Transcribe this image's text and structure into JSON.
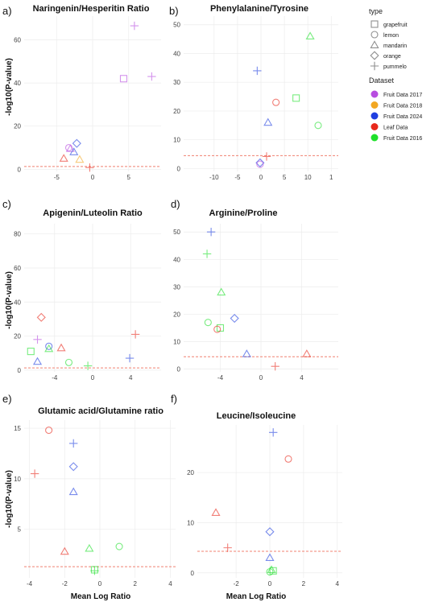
{
  "figure": {
    "ylabel": "-log10(P-value)",
    "xlabel": "Mean Log Ratio"
  },
  "legend": {
    "type_title": "type",
    "types": [
      {
        "name": "grapefruit",
        "shape": "square"
      },
      {
        "name": "lemon",
        "shape": "circle"
      },
      {
        "name": "mandarin",
        "shape": "triangle"
      },
      {
        "name": "orange",
        "shape": "diamond"
      },
      {
        "name": "pummelo",
        "shape": "plus"
      }
    ],
    "dataset_title": "Dataset",
    "datasets": [
      {
        "name": "Fruit Data 2017",
        "color": "#b84de0"
      },
      {
        "name": "Fruit Data 2018",
        "color": "#f2a722"
      },
      {
        "name": "Fruit Data 2024",
        "color": "#1f3fe0"
      },
      {
        "name": "Leaf Data",
        "color": "#e8291c"
      },
      {
        "name": "Fruit Data 2016",
        "color": "#1fe02b"
      }
    ]
  },
  "chart_data": [
    {
      "letter": "a)",
      "title": "Naringenin/Hesperitin Ratio",
      "type": "scatter",
      "xticks": [
        "-5",
        "0",
        "5"
      ],
      "yticks": [
        "0",
        "20",
        "40",
        "60"
      ],
      "xlim": [
        -9.5,
        9.5
      ],
      "ylim": [
        -1,
        71
      ],
      "threshold": 1.3,
      "points": [
        {
          "x": 5.8,
          "y": 66.5,
          "shape": "plus",
          "dataset": "Fruit Data 2017"
        },
        {
          "x": 4.3,
          "y": 42,
          "shape": "square",
          "dataset": "Fruit Data 2017"
        },
        {
          "x": 8.2,
          "y": 43,
          "shape": "plus",
          "dataset": "Fruit Data 2017"
        },
        {
          "x": -2.2,
          "y": 12,
          "shape": "diamond",
          "dataset": "Fruit Data 2024"
        },
        {
          "x": -3.1,
          "y": 9.5,
          "shape": "triangle",
          "dataset": "Fruit Data 2017"
        },
        {
          "x": -2.6,
          "y": 8,
          "shape": "triangle",
          "dataset": "Fruit Data 2024"
        },
        {
          "x": -3.3,
          "y": 10,
          "shape": "circle",
          "dataset": "Fruit Data 2017"
        },
        {
          "x": -4.0,
          "y": 5,
          "shape": "triangle",
          "dataset": "Leaf Data"
        },
        {
          "x": -1.8,
          "y": 4.5,
          "shape": "triangle",
          "dataset": "Fruit Data 2018"
        },
        {
          "x": -0.4,
          "y": 0.8,
          "shape": "plus",
          "dataset": "Leaf Data"
        }
      ]
    },
    {
      "letter": "b)",
      "title": "Phenylalanine/Tyrosine",
      "type": "scatter",
      "xticks": [
        "-10",
        "-5",
        "0",
        "5",
        "10",
        "1"
      ],
      "yticks": [
        "0",
        "10",
        "20",
        "30",
        "40",
        "50"
      ],
      "xlim": [
        -16.5,
        16.5
      ],
      "ylim": [
        -1,
        53
      ],
      "threshold": 4.5,
      "points": [
        {
          "x": 10.5,
          "y": 46,
          "shape": "triangle",
          "dataset": "Fruit Data 2016"
        },
        {
          "x": -0.8,
          "y": 34,
          "shape": "plus",
          "dataset": "Fruit Data 2024"
        },
        {
          "x": 7.5,
          "y": 24.5,
          "shape": "square",
          "dataset": "Fruit Data 2016"
        },
        {
          "x": 3.2,
          "y": 23,
          "shape": "circle",
          "dataset": "Leaf Data"
        },
        {
          "x": 1.5,
          "y": 16,
          "shape": "triangle",
          "dataset": "Fruit Data 2024"
        },
        {
          "x": 12.2,
          "y": 15,
          "shape": "circle",
          "dataset": "Fruit Data 2016"
        },
        {
          "x": 1.2,
          "y": 4.2,
          "shape": "plus",
          "dataset": "Leaf Data"
        },
        {
          "x": -0.2,
          "y": 2,
          "shape": "diamond",
          "dataset": "Fruit Data 2024"
        },
        {
          "x": -0.2,
          "y": 1.5,
          "shape": "circle",
          "dataset": "Fruit Data 2017"
        }
      ]
    },
    {
      "letter": "c)",
      "title": "Apigenin/Luteolin Ratio",
      "type": "scatter",
      "xticks": [
        "-4",
        "0",
        "4"
      ],
      "yticks": [
        "0",
        "20",
        "40",
        "60",
        "80"
      ],
      "xlim": [
        -7.2,
        7.2
      ],
      "ylim": [
        -1,
        86
      ],
      "threshold": 1.3,
      "points": [
        {
          "x": -5.4,
          "y": 31,
          "shape": "diamond",
          "dataset": "Leaf Data"
        },
        {
          "x": 4.5,
          "y": 21,
          "shape": "plus",
          "dataset": "Leaf Data"
        },
        {
          "x": -5.8,
          "y": 18,
          "shape": "plus",
          "dataset": "Fruit Data 2017"
        },
        {
          "x": -4.6,
          "y": 14,
          "shape": "circle",
          "dataset": "Fruit Data 2024"
        },
        {
          "x": -3.3,
          "y": 13,
          "shape": "triangle",
          "dataset": "Leaf Data"
        },
        {
          "x": -4.6,
          "y": 12.5,
          "shape": "triangle",
          "dataset": "Fruit Data 2016"
        },
        {
          "x": -6.5,
          "y": 11,
          "shape": "square",
          "dataset": "Fruit Data 2016"
        },
        {
          "x": 3.9,
          "y": 7,
          "shape": "plus",
          "dataset": "Fruit Data 2024"
        },
        {
          "x": -5.8,
          "y": 5,
          "shape": "triangle",
          "dataset": "Fruit Data 2024"
        },
        {
          "x": -2.5,
          "y": 4.5,
          "shape": "circle",
          "dataset": "Fruit Data 2016"
        },
        {
          "x": -0.5,
          "y": 2.5,
          "shape": "plus",
          "dataset": "Fruit Data 2016"
        }
      ]
    },
    {
      "letter": "d)",
      "title": "Arginine/Proline",
      "type": "scatter",
      "xticks": [
        "-4",
        "0",
        "4"
      ],
      "yticks": [
        "0",
        "10",
        "20",
        "30",
        "40",
        "50"
      ],
      "xlim": [
        -7.6,
        7.6
      ],
      "ylim": [
        -1,
        53
      ],
      "threshold": 4.5,
      "points": [
        {
          "x": -4.9,
          "y": 50,
          "shape": "plus",
          "dataset": "Fruit Data 2024"
        },
        {
          "x": -5.3,
          "y": 42,
          "shape": "plus",
          "dataset": "Fruit Data 2016"
        },
        {
          "x": -3.9,
          "y": 28,
          "shape": "triangle",
          "dataset": "Fruit Data 2016"
        },
        {
          "x": -2.6,
          "y": 18.5,
          "shape": "diamond",
          "dataset": "Fruit Data 2024"
        },
        {
          "x": -5.2,
          "y": 17,
          "shape": "circle",
          "dataset": "Fruit Data 2016"
        },
        {
          "x": -4.0,
          "y": 15,
          "shape": "square",
          "dataset": "Fruit Data 2016"
        },
        {
          "x": -4.3,
          "y": 14.5,
          "shape": "circle",
          "dataset": "Leaf Data"
        },
        {
          "x": -1.4,
          "y": 5.5,
          "shape": "triangle",
          "dataset": "Fruit Data 2024"
        },
        {
          "x": 4.5,
          "y": 5.5,
          "shape": "triangle",
          "dataset": "Leaf Data"
        },
        {
          "x": 1.4,
          "y": 1,
          "shape": "plus",
          "dataset": "Leaf Data"
        }
      ]
    },
    {
      "letter": "e)",
      "title": "Glutamic acid/Glutamine ratio",
      "type": "scatter",
      "xticks": [
        "-4",
        "-2",
        "0",
        "2",
        "4"
      ],
      "yticks": [
        "5",
        "10",
        "15"
      ],
      "xlim": [
        -4.3,
        4.3
      ],
      "ylim": [
        0.2,
        15.8
      ],
      "threshold": 1.3,
      "points": [
        {
          "x": -2.9,
          "y": 14.8,
          "shape": "circle",
          "dataset": "Leaf Data"
        },
        {
          "x": -1.5,
          "y": 13.5,
          "shape": "plus",
          "dataset": "Fruit Data 2024"
        },
        {
          "x": -1.5,
          "y": 11.2,
          "shape": "diamond",
          "dataset": "Fruit Data 2024"
        },
        {
          "x": -3.7,
          "y": 10.5,
          "shape": "plus",
          "dataset": "Leaf Data"
        },
        {
          "x": -1.5,
          "y": 8.7,
          "shape": "triangle",
          "dataset": "Fruit Data 2024"
        },
        {
          "x": 1.1,
          "y": 3.3,
          "shape": "circle",
          "dataset": "Fruit Data 2016"
        },
        {
          "x": -0.6,
          "y": 3.1,
          "shape": "triangle",
          "dataset": "Fruit Data 2016"
        },
        {
          "x": -2.0,
          "y": 2.8,
          "shape": "triangle",
          "dataset": "Leaf Data"
        },
        {
          "x": -0.3,
          "y": 0.9,
          "shape": "plus",
          "dataset": "Fruit Data 2016"
        },
        {
          "x": -0.3,
          "y": 1.0,
          "shape": "square",
          "dataset": "Fruit Data 2016"
        }
      ]
    },
    {
      "letter": "f)",
      "title": "Leucine/Isoleucine",
      "type": "scatter",
      "xticks": [
        "-2",
        "0",
        "2",
        "4"
      ],
      "yticks": [
        "0",
        "10",
        "20"
      ],
      "xlim": [
        -4.3,
        4.3
      ],
      "ylim": [
        -1,
        29.5
      ],
      "threshold": 4.3,
      "points": [
        {
          "x": 0.2,
          "y": 28,
          "shape": "plus",
          "dataset": "Fruit Data 2024"
        },
        {
          "x": 1.1,
          "y": 22.7,
          "shape": "circle",
          "dataset": "Leaf Data"
        },
        {
          "x": -3.2,
          "y": 12,
          "shape": "triangle",
          "dataset": "Leaf Data"
        },
        {
          "x": 0.0,
          "y": 8.2,
          "shape": "diamond",
          "dataset": "Fruit Data 2024"
        },
        {
          "x": -2.5,
          "y": 5,
          "shape": "plus",
          "dataset": "Leaf Data"
        },
        {
          "x": 0.0,
          "y": 3.0,
          "shape": "triangle",
          "dataset": "Fruit Data 2024"
        },
        {
          "x": 0.1,
          "y": 0.6,
          "shape": "triangle",
          "dataset": "Fruit Data 2016"
        },
        {
          "x": 0.2,
          "y": 0.4,
          "shape": "square",
          "dataset": "Fruit Data 2016"
        },
        {
          "x": 0.0,
          "y": 0.2,
          "shape": "circle",
          "dataset": "Fruit Data 2016"
        }
      ]
    }
  ]
}
